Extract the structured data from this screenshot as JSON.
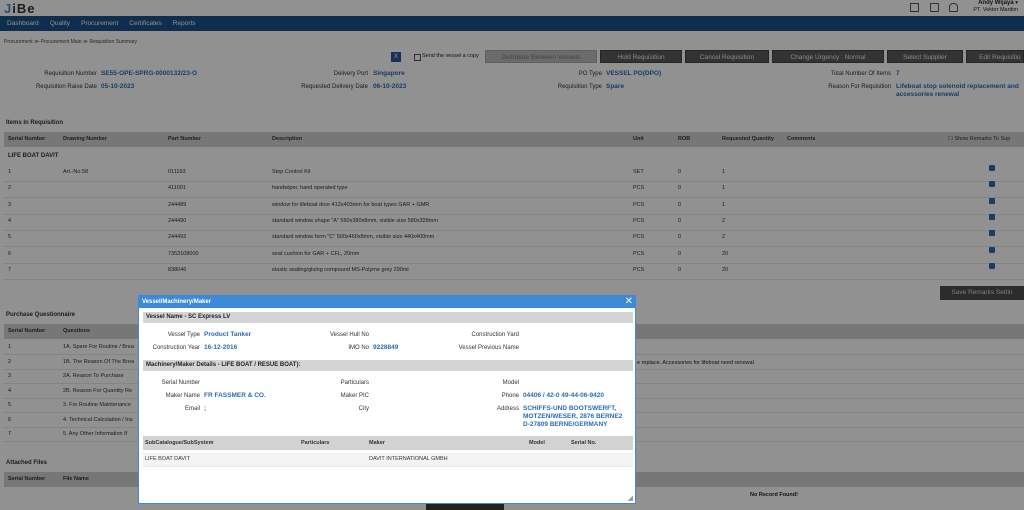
{
  "app": {
    "logo_prefix": "J",
    "logo_rest": "iBe"
  },
  "user": {
    "name": "Andy Wijaya",
    "company": "PT. Vektor Maritim"
  },
  "nav": [
    "Dashboard",
    "Quality",
    "Procurement",
    "Certificates",
    "Reports"
  ],
  "breadcrumb": "Procurement ≫ Procurement Main ≫ Requisition Summary",
  "toolbar": {
    "send_copy": "Send the vessel a copy",
    "distribute": "Distribute Between Vessels",
    "hold": "Hold Requisition",
    "cancel": "Cancel Requisition",
    "urgency": "Change Urgency : Normal",
    "supplier": "Select Supplier",
    "edit": "Edit Requisitio"
  },
  "summary": {
    "req_number_label": "Requisition Number",
    "req_number": "SE55-OPE-SPRG-0000132/23-O",
    "raise_date_label": "Requisition Raise Date",
    "raise_date": "05-10-2023",
    "delivery_port_label": "Delivery Port",
    "delivery_port": "Singapore",
    "req_delivery_label": "Requested Delivery Date",
    "req_delivery": "06-10-2023",
    "po_type_label": "PO Type",
    "po_type": "VESSEL PO(DPO)",
    "req_type_label": "Requisition Type",
    "req_type": "Spare",
    "total_items_label": "Total Number Of Items",
    "total_items": "7",
    "reason_label": "Reason For Requisition",
    "reason": "Lifeboat stop solenoid replacement and accessories renewal"
  },
  "items": {
    "title": "Items In Requisition",
    "columns": [
      "Serial Number",
      "Drawing Number",
      "Part Number",
      "Description",
      "Unit",
      "ROB",
      "Requested Quantity",
      "Comments"
    ],
    "show_remarks": "Show Remarks To Sup",
    "group": "LIFE BOAT DAVIT",
    "rows": [
      {
        "sn": "1",
        "dwg": "Art.-No.58",
        "part": "011193",
        "desc": "Stop Control Kit",
        "unit": "SET",
        "rob": "0",
        "qty": "1"
      },
      {
        "sn": "2",
        "dwg": "",
        "part": "411001",
        "desc": "handwiper, hand operated type",
        "unit": "PCS",
        "rob": "0",
        "qty": "1"
      },
      {
        "sn": "3",
        "dwg": "",
        "part": "244489",
        "desc": "window for lifeboat door 412x403mm for boat types GAR + GMR",
        "unit": "PCS",
        "rob": "0",
        "qty": "1"
      },
      {
        "sn": "4",
        "dwg": "",
        "part": "244490",
        "desc": "standard window shape \"A\" 560x380x8mm, visible size 580x328mm",
        "unit": "PCS",
        "rob": "0",
        "qty": "2"
      },
      {
        "sn": "5",
        "dwg": "",
        "part": "244492",
        "desc": "standard window form \"C\" 500x460x8mm, visible size 440x400mm",
        "unit": "PCS",
        "rob": "0",
        "qty": "2"
      },
      {
        "sn": "6",
        "dwg": "",
        "part": "7353108000",
        "desc": "seat cushion for GAR + CFL, 20mm",
        "unit": "PCS",
        "rob": "0",
        "qty": "20"
      },
      {
        "sn": "7",
        "dwg": "",
        "part": "838046",
        "desc": "elastic sealing/gluing compound MS-Polyme grey 290ml",
        "unit": "PCS",
        "rob": "0",
        "qty": "20"
      }
    ]
  },
  "save_remarks": "Save Remarks Settin",
  "questionnaire": {
    "title": "Purchase Questionnaire",
    "columns": [
      "Serial Number",
      "Questions"
    ],
    "rows": [
      {
        "sn": "1",
        "q": "1A. Spare For Routine / Brea"
      },
      {
        "sn": "2",
        "q": "1B. The Reason Of The Brea"
      },
      {
        "sn": "3",
        "q": "2A. Reason To Purchase"
      },
      {
        "sn": "4",
        "q": "2B. Reason For Quantity Re"
      },
      {
        "sn": "5",
        "q": "3. For Routine Maintenance"
      },
      {
        "sn": "6",
        "q": "4. Technical Calculation / Ins"
      },
      {
        "sn": "7",
        "q": "5. Any Other Information If"
      }
    ],
    "answer_fragment": "e replace. Accessories for lifeboat need renewal"
  },
  "attached": {
    "title": "Attached Files",
    "columns": [
      "Serial Number",
      "File Name"
    ],
    "empty": "No Record Found!"
  },
  "dialog": {
    "title": "Vessel/Machinery/Maker",
    "vessel_section": "Vessel Name - SC Express LV",
    "vessel_type_label": "Vessel Type",
    "vessel_type": "Product Tanker",
    "construction_year_label": "Construction Year",
    "construction_year": "16-12-2016",
    "hull_no_label": "Vessel Hull No",
    "hull_no": "",
    "imo_label": "IMO No",
    "imo": "9228849",
    "yard_label": "Construction Yard",
    "prev_name_label": "Vessel Previous Name",
    "machinery_section": "Machinery/Maker Details - LIFE BOAT / RESUE BOAT):",
    "serial_label": "Serial Number",
    "maker_name_label": "Maker Name",
    "maker_name": "FR FASSMER & CO.",
    "email_label": "Email",
    "email": ";",
    "particulars_label": "Particulars",
    "maker_pic_label": "Maker PIC",
    "city_label": "City",
    "model_label": "Model",
    "phone_label": "Phone",
    "phone": "04406 / 42-0 49-44-06-9420",
    "address_label": "Address",
    "address_lines": [
      "SCHIFFS-UND BOOTSWERFT,",
      "MOTZEN/WESER, 2876 BERNE2",
      "D-27809 BERNE/GERMANY"
    ],
    "sub_columns": [
      "SubCatalogue/SubSystem",
      "Particulars",
      "Maker",
      "Model",
      "Serial No."
    ],
    "sub_row": {
      "subsystem": "LIFE BOAT DAVIT",
      "particulars": "",
      "maker": "DAVIT INTERNATIONAL GMBH",
      "model": "",
      "serial": ""
    }
  }
}
